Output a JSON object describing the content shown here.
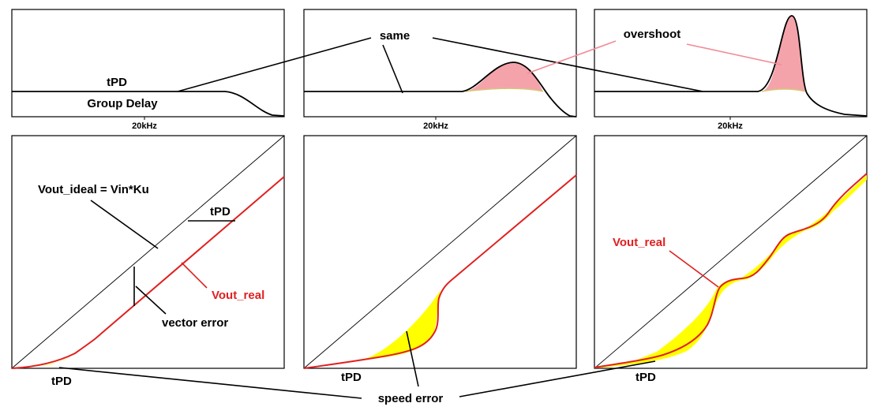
{
  "labels": {
    "tpd_top": "tPD",
    "group_delay": "Group Delay",
    "same": "same",
    "overshoot": "overshoot",
    "freq_1": "20kHz",
    "freq_2": "20kHz",
    "freq_3": "20kHz",
    "vout_ideal": "Vout_ideal = Vin*Ku",
    "tpd_slope": "tPD",
    "vout_real_1": "Vout_real",
    "vector_error": "vector error",
    "tpd_bottom_1": "tPD",
    "tpd_bottom_2": "tPD",
    "tpd_bottom_3": "tPD",
    "speed_error": "speed error",
    "vout_real_3": "Vout_real"
  },
  "colors": {
    "real_trace": "#e02020",
    "error_fill": "#ffff00",
    "overshoot_fill": "#f5a3ab",
    "pink_leader": "#f28b94"
  }
}
